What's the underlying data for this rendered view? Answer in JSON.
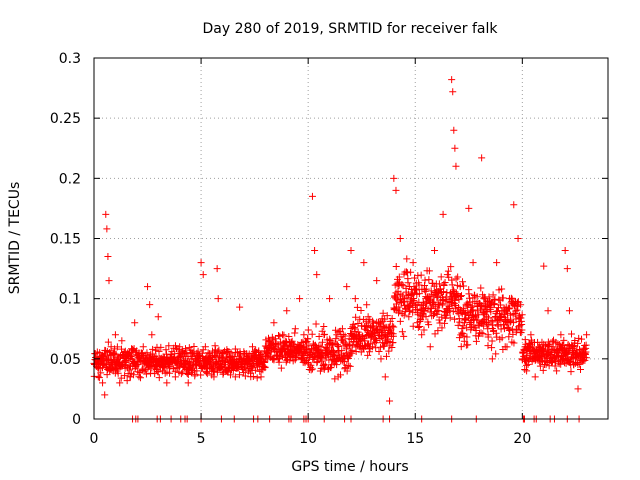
{
  "chart_data": {
    "type": "scatter",
    "title": "Day 280 of 2019, SRMTID for receiver falk",
    "xlabel": "GPS time / hours",
    "ylabel": "SRMTID / TECUs",
    "xlim": [
      0,
      24
    ],
    "ylim": [
      0,
      0.3
    ],
    "xticks": [
      "0",
      "5",
      "10",
      "15",
      "20"
    ],
    "xtick_values": [
      0,
      5,
      10,
      15,
      20
    ],
    "yticks": [
      "0",
      "0.05",
      "0.1",
      "0.15",
      "0.2",
      "0.25",
      "0.3"
    ],
    "ytick_values": [
      0,
      0.05,
      0.1,
      0.15,
      0.2,
      0.25,
      0.3
    ],
    "grid": true,
    "marker": "plus",
    "color": "#ff0000",
    "series": [
      {
        "name": "SRMTID",
        "x_range": [
          0,
          23
        ],
        "points": [
          [
            0.1,
            0.045
          ],
          [
            0.2,
            0.035
          ],
          [
            0.3,
            0.05
          ],
          [
            0.4,
            0.03
          ],
          [
            0.5,
            0.02
          ],
          [
            0.55,
            0.17
          ],
          [
            0.6,
            0.158
          ],
          [
            0.65,
            0.135
          ],
          [
            0.7,
            0.115
          ],
          [
            0.8,
            0.06
          ],
          [
            0.9,
            0.04
          ],
          [
            1.0,
            0.07
          ],
          [
            1.1,
            0.05
          ],
          [
            1.2,
            0.03
          ],
          [
            1.3,
            0.065
          ],
          [
            1.5,
            0.045
          ],
          [
            1.7,
            0.035
          ],
          [
            1.9,
            0.08
          ],
          [
            2.1,
            0.055
          ],
          [
            2.3,
            0.06
          ],
          [
            2.5,
            0.11
          ],
          [
            2.6,
            0.095
          ],
          [
            2.7,
            0.07
          ],
          [
            2.8,
            0.05
          ],
          [
            3.0,
            0.085
          ],
          [
            3.2,
            0.04
          ],
          [
            3.4,
            0.03
          ],
          [
            3.6,
            0.05
          ],
          [
            3.8,
            0.035
          ],
          [
            4.0,
            0.06
          ],
          [
            4.2,
            0.045
          ],
          [
            4.4,
            0.03
          ],
          [
            4.6,
            0.055
          ],
          [
            4.8,
            0.04
          ],
          [
            5.0,
            0.13
          ],
          [
            5.1,
            0.12
          ],
          [
            5.2,
            0.06
          ],
          [
            5.4,
            0.045
          ],
          [
            5.6,
            0.035
          ],
          [
            5.75,
            0.125
          ],
          [
            5.8,
            0.1
          ],
          [
            6.0,
            0.05
          ],
          [
            6.2,
            0.04
          ],
          [
            6.4,
            0.055
          ],
          [
            6.6,
            0.035
          ],
          [
            6.8,
            0.093
          ],
          [
            7.0,
            0.05
          ],
          [
            7.2,
            0.04
          ],
          [
            7.4,
            0.06
          ],
          [
            7.6,
            0.045
          ],
          [
            7.8,
            0.035
          ],
          [
            8.0,
            0.05
          ],
          [
            8.2,
            0.065
          ],
          [
            8.4,
            0.08
          ],
          [
            8.6,
            0.05
          ],
          [
            8.8,
            0.07
          ],
          [
            9.0,
            0.09
          ],
          [
            9.2,
            0.06
          ],
          [
            9.4,
            0.075
          ],
          [
            9.6,
            0.1
          ],
          [
            9.8,
            0.07
          ],
          [
            10.0,
            0.055
          ],
          [
            10.2,
            0.185
          ],
          [
            10.3,
            0.14
          ],
          [
            10.4,
            0.12
          ],
          [
            10.6,
            0.06
          ],
          [
            10.8,
            0.045
          ],
          [
            11.0,
            0.1
          ],
          [
            11.2,
            0.05
          ],
          [
            11.4,
            0.035
          ],
          [
            11.6,
            0.075
          ],
          [
            11.8,
            0.11
          ],
          [
            12.0,
            0.14
          ],
          [
            12.2,
            0.1
          ],
          [
            12.4,
            0.07
          ],
          [
            12.6,
            0.13
          ],
          [
            12.8,
            0.085
          ],
          [
            13.0,
            0.06
          ],
          [
            13.2,
            0.115
          ],
          [
            13.4,
            0.05
          ],
          [
            13.6,
            0.035
          ],
          [
            13.8,
            0.015
          ],
          [
            14.0,
            0.2
          ],
          [
            14.1,
            0.19
          ],
          [
            14.3,
            0.15
          ],
          [
            14.5,
            0.1
          ],
          [
            14.7,
            0.085
          ],
          [
            14.9,
            0.13
          ],
          [
            15.1,
            0.08
          ],
          [
            15.3,
            0.07
          ],
          [
            15.5,
            0.1
          ],
          [
            15.7,
            0.06
          ],
          [
            15.9,
            0.14
          ],
          [
            16.1,
            0.09
          ],
          [
            16.3,
            0.17
          ],
          [
            16.5,
            0.12
          ],
          [
            16.7,
            0.282
          ],
          [
            16.75,
            0.272
          ],
          [
            16.8,
            0.24
          ],
          [
            16.85,
            0.225
          ],
          [
            16.9,
            0.21
          ],
          [
            17.1,
            0.11
          ],
          [
            17.3,
            0.08
          ],
          [
            17.5,
            0.175
          ],
          [
            17.7,
            0.13
          ],
          [
            17.9,
            0.09
          ],
          [
            18.1,
            0.217
          ],
          [
            18.2,
            0.1
          ],
          [
            18.4,
            0.07
          ],
          [
            18.6,
            0.05
          ],
          [
            18.8,
            0.13
          ],
          [
            19.0,
            0.085
          ],
          [
            19.2,
            0.06
          ],
          [
            19.4,
            0.1
          ],
          [
            19.6,
            0.178
          ],
          [
            19.8,
            0.15
          ],
          [
            20.0,
            0.05
          ],
          [
            20.2,
            0.04
          ],
          [
            20.4,
            0.07
          ],
          [
            20.6,
            0.035
          ],
          [
            20.8,
            0.06
          ],
          [
            21.0,
            0.127
          ],
          [
            21.2,
            0.09
          ],
          [
            21.4,
            0.05
          ],
          [
            21.6,
            0.04
          ],
          [
            21.8,
            0.07
          ],
          [
            22.0,
            0.14
          ],
          [
            22.1,
            0.125
          ],
          [
            22.2,
            0.09
          ],
          [
            22.4,
            0.045
          ],
          [
            22.6,
            0.025
          ],
          [
            22.8,
            0.055
          ],
          [
            23.0,
            0.07
          ]
        ],
        "zero_points_x": [
          1.8,
          1.95,
          2.05,
          2.95,
          3.1,
          3.6,
          4.05,
          4.25,
          4.35,
          5.0,
          5.95,
          6.55,
          7.45,
          7.65,
          8.2,
          9.1,
          9.2,
          9.8,
          9.9,
          10.0,
          10.75,
          11.7,
          12.0,
          13.5,
          13.8,
          15.3,
          16.7,
          17.85,
          20.05,
          20.1,
          20.55,
          20.65,
          21.3,
          21.5,
          22.1,
          22.65
        ]
      }
    ]
  }
}
